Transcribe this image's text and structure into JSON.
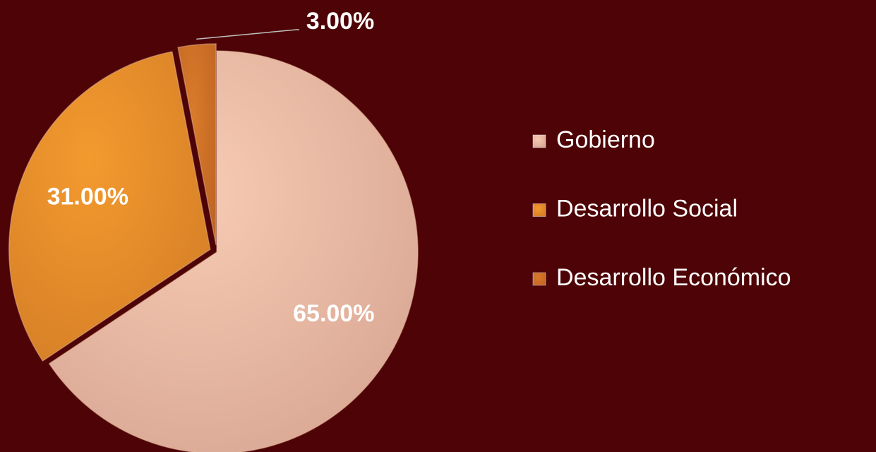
{
  "chart_data": {
    "type": "pie",
    "categories": [
      "Gobierno",
      "Desarrollo Social",
      "Desarrollo Económico"
    ],
    "values": [
      65,
      31,
      3
    ],
    "value_labels": [
      "65.00%",
      "31.00%",
      "3.00%"
    ],
    "colors": [
      "#f7cbb3",
      "#f39a2e",
      "#d97b2a"
    ],
    "legend": "right"
  }
}
